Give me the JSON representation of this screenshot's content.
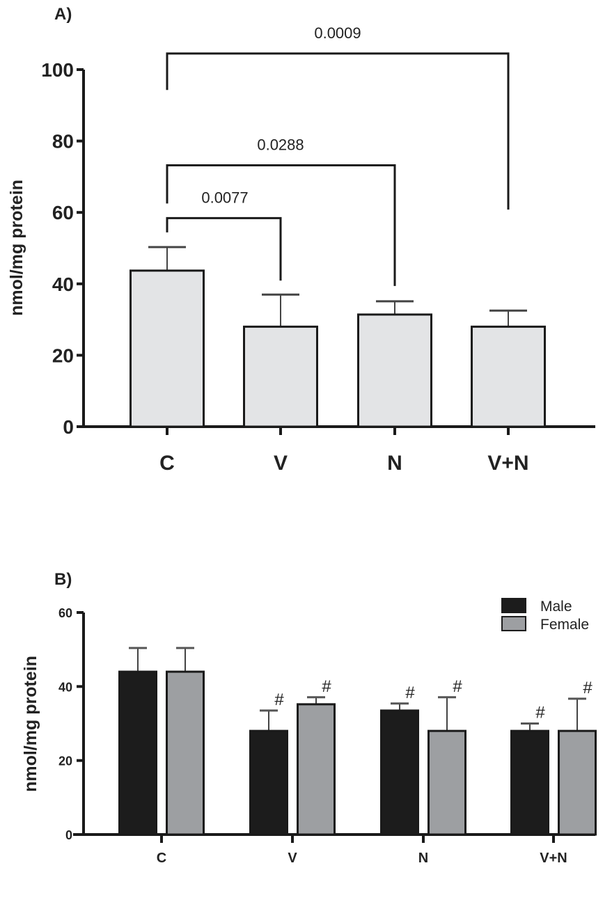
{
  "chart_data": [
    {
      "type": "bar",
      "panel_label": "A)",
      "ylabel": "nmol/mg protein",
      "ylim": [
        0,
        100
      ],
      "yticks": [
        0,
        20,
        40,
        60,
        80,
        100
      ],
      "categories": [
        "C",
        "V",
        "N",
        "V+N"
      ],
      "values": [
        43.7,
        28.0,
        31.4,
        28.0
      ],
      "error_upper": [
        50.3,
        37.0,
        35.1,
        32.5
      ],
      "colors": {
        "bar": "#e3e4e6",
        "edge": "#1a1a1a"
      },
      "comparisons": [
        {
          "from": "C",
          "to": "V",
          "p": "0.0077"
        },
        {
          "from": "C",
          "to": "N",
          "p": "0.0288"
        },
        {
          "from": "C",
          "to": "V+N",
          "p": "0.0009"
        }
      ],
      "grid": false
    },
    {
      "type": "bar",
      "panel_label": "B)",
      "ylabel": "nmol/mg protein",
      "ylim": [
        0,
        60
      ],
      "yticks": [
        0,
        20,
        40,
        60
      ],
      "categories": [
        "C",
        "V",
        "N",
        "V+N"
      ],
      "series": [
        {
          "name": "Male",
          "color": "#1c1c1c",
          "values": [
            44.0,
            28.0,
            33.5,
            28.0
          ],
          "error_upper": [
            50.4,
            33.5,
            35.4,
            30.0
          ],
          "markers": [
            "",
            "#",
            "#",
            "#"
          ]
        },
        {
          "name": "Female",
          "color": "#9d9fa2",
          "values": [
            44.0,
            35.2,
            28.0,
            28.0
          ],
          "error_upper": [
            50.4,
            37.1,
            37.1,
            36.7
          ],
          "markers": [
            "",
            "#",
            "#",
            "#"
          ]
        }
      ],
      "legend": "top-right",
      "grid": false
    }
  ]
}
